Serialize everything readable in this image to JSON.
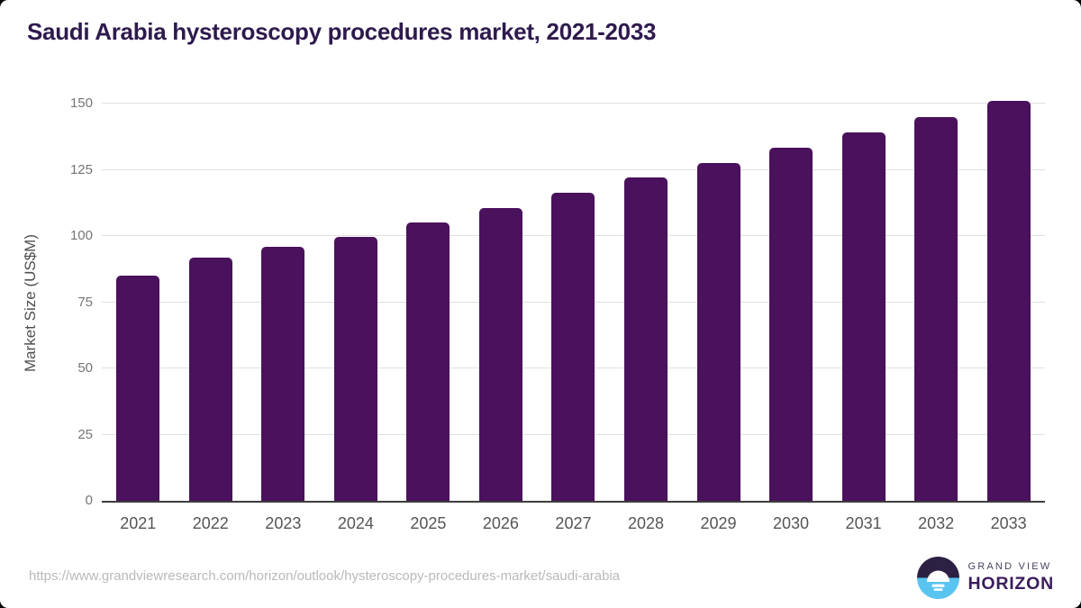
{
  "chart_data": {
    "type": "bar",
    "title": "Saudi Arabia hysteroscopy procedures market, 2021-2033",
    "categories": [
      "2021",
      "2022",
      "2023",
      "2024",
      "2025",
      "2026",
      "2027",
      "2028",
      "2029",
      "2030",
      "2031",
      "2032",
      "2033"
    ],
    "values": [
      85,
      92,
      96,
      99.5,
      105,
      110.5,
      116.5,
      122,
      127.5,
      133.5,
      139,
      145,
      151
    ],
    "xlabel": "",
    "ylabel": "Market Size (US$M)",
    "ylim": [
      0,
      150
    ],
    "yticks": [
      0,
      25,
      50,
      75,
      100,
      125,
      150
    ],
    "grid": true,
    "legend": false,
    "bar_color": "#4a115c"
  },
  "footer": {
    "source_url": "https://www.grandviewresearch.com/horizon/outlook/hysteroscopy-procedures-market/saudi-arabia",
    "logo": {
      "line1": "GRAND VIEW",
      "line2": "HORIZON",
      "icon": "horizon-sun-icon"
    }
  },
  "colors": {
    "bar": "#4a115c",
    "title_text": "#2e1a4d",
    "axis_line": "#3d3d3d",
    "gridline": "#e0e0e0",
    "y_tick_text": "#757575",
    "x_tick_text": "#555555",
    "y_axis_title_text": "#4f4f4f",
    "source_url_text": "#b9b9b9",
    "logo_dark": "#2c2043",
    "logo_blue": "#5ac4f0",
    "logo_text_small": "#4a4161",
    "logo_text_large": "#3a1c5c"
  }
}
